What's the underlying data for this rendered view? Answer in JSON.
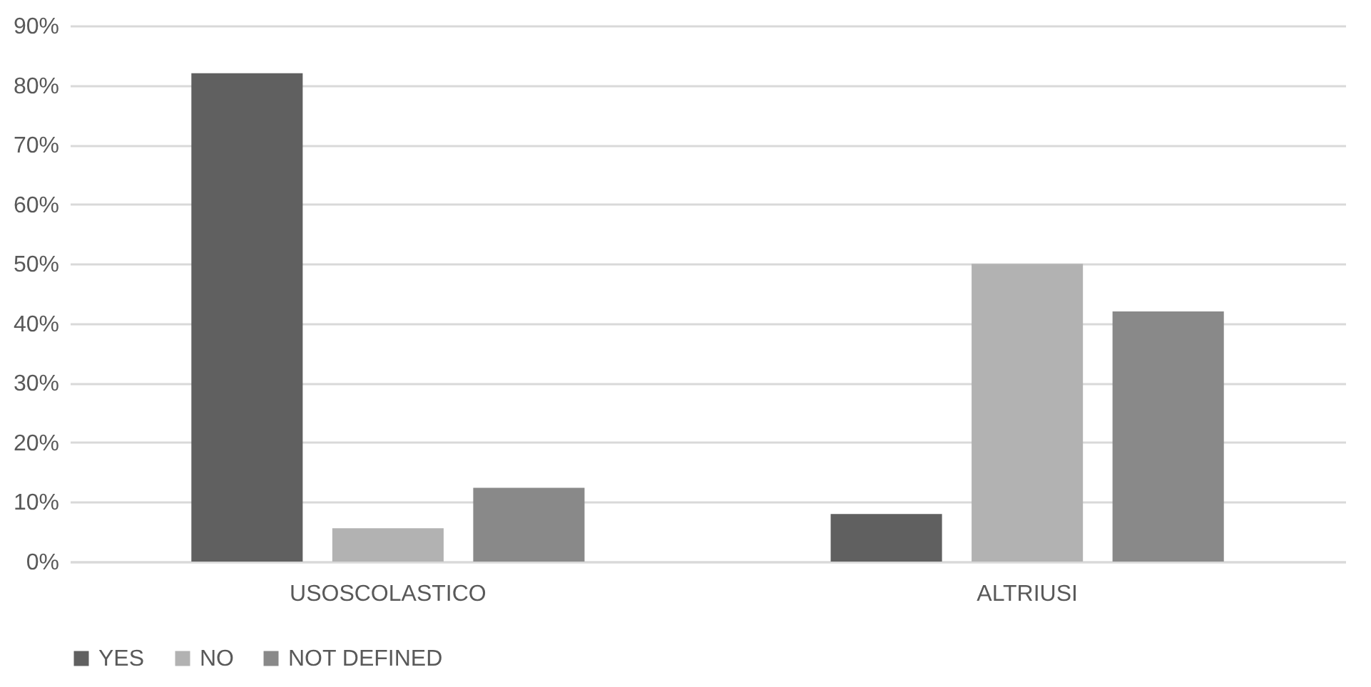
{
  "chart_data": {
    "type": "bar",
    "categories": [
      "USOSCOLASTICO",
      "ALTRIUSI"
    ],
    "series": [
      {
        "name": "YES",
        "color": "#606060",
        "values": [
          82,
          8
        ]
      },
      {
        "name": "NO",
        "color": "#b2b2b2",
        "values": [
          5.6,
          50
        ]
      },
      {
        "name": "NOT DEFINED",
        "color": "#898989",
        "values": [
          12.4,
          42
        ]
      }
    ],
    "ylim": [
      0,
      90
    ],
    "yticks": [
      {
        "value": 0,
        "label": "0%"
      },
      {
        "value": 10,
        "label": "10%"
      },
      {
        "value": 20,
        "label": "20%"
      },
      {
        "value": 30,
        "label": "30%"
      },
      {
        "value": 40,
        "label": "40%"
      },
      {
        "value": 50,
        "label": "50%"
      },
      {
        "value": 60,
        "label": "60%"
      },
      {
        "value": 70,
        "label": "70%"
      },
      {
        "value": 80,
        "label": "80%"
      },
      {
        "value": 90,
        "label": "90%"
      }
    ],
    "grid": "y",
    "legend": "bottom"
  }
}
